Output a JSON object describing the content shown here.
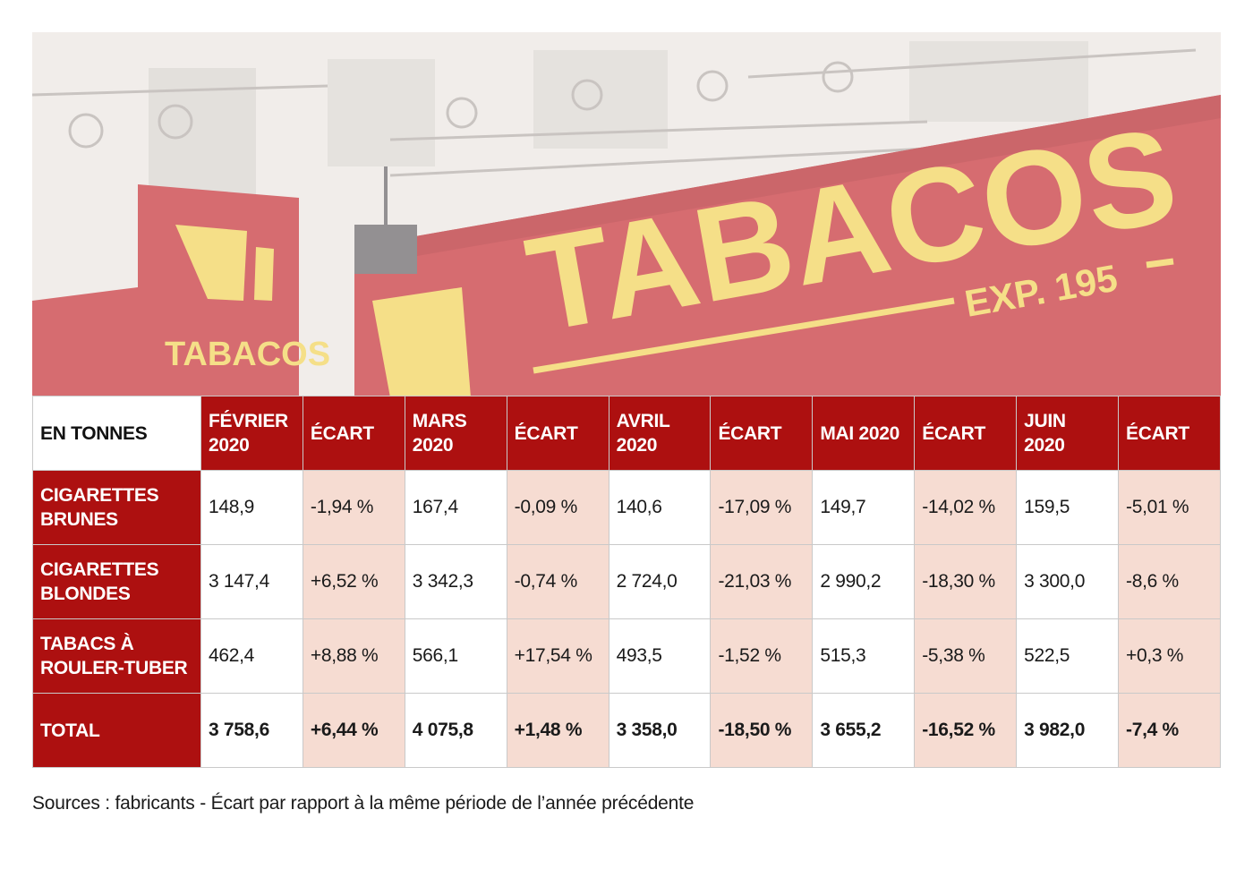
{
  "photo": {
    "sign_main": "TABACOS",
    "sign_sub": "EXP. 195",
    "sign_small": "TABACOS",
    "colors": {
      "sign_red": "#c7343a",
      "sign_yellow": "#f2d35a",
      "wall": "#ece7e2"
    }
  },
  "chart_data": {
    "type": "table",
    "unit_header": "EN TONNES",
    "columns": [
      "FÉVRIER 2020",
      "ÉCART",
      "MARS 2020",
      "ÉCART",
      "AVRIL 2020",
      "ÉCART",
      "MAI 2020",
      "ÉCART",
      "JUIN 2020",
      "ÉCART"
    ],
    "rows": [
      {
        "label": "CIGARETTES BRUNES",
        "values": [
          "148,9",
          "-1,94 %",
          "167,4",
          "-0,09 %",
          "140,6",
          "-17,09 %",
          "149,7",
          "-14,02 %",
          "159,5",
          "-5,01 %"
        ]
      },
      {
        "label": "CIGARETTES BLONDES",
        "values": [
          "3 147,4",
          "+6,52 %",
          "3 342,3",
          "-0,74 %",
          "2 724,0",
          "-21,03 %",
          "2 990,2",
          "-18,30 %",
          "3 300,0",
          "-8,6 %"
        ]
      },
      {
        "label": "TABACS À ROULER-TUBER",
        "values": [
          "462,4",
          "+8,88 %",
          "566,1",
          "+17,54 %",
          "493,5",
          "-1,52 %",
          "515,3",
          "-5,38 %",
          "522,5",
          "+0,3 %"
        ]
      },
      {
        "label": "TOTAL",
        "values": [
          "3 758,6",
          "+6,44 %",
          "4 075,8",
          "+1,48 %",
          "3 358,0",
          "-18,50 %",
          "3 655,2",
          "-16,52 %",
          "3 982,0",
          "-7,4 %"
        ]
      }
    ],
    "colors": {
      "header": "#ad1010",
      "ecart_cell": "#f6dcd2",
      "value_cell": "#ffffff"
    }
  },
  "source": "Sources : fabricants - Écart par rapport à la même période de l’année précédente"
}
